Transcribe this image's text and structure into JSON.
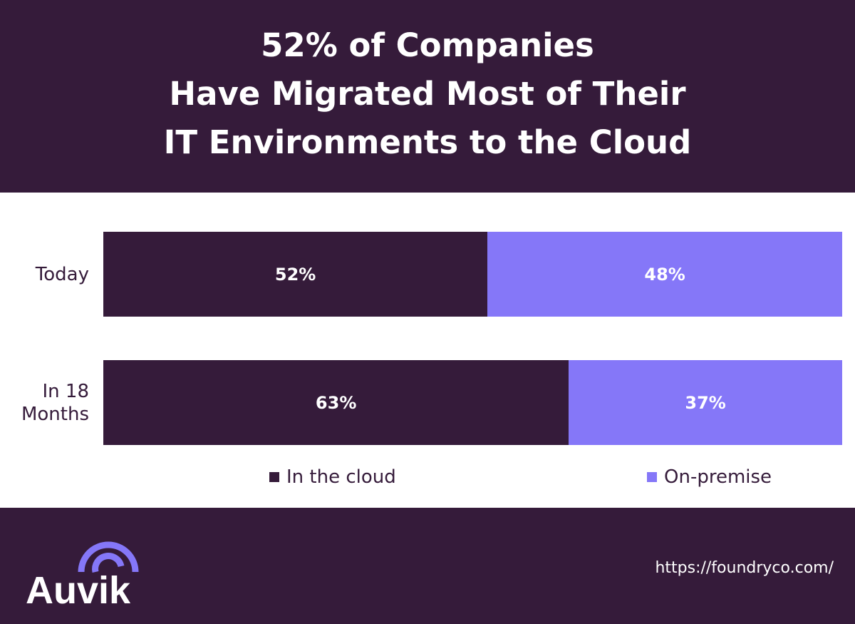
{
  "chart_data": {
    "type": "bar",
    "orientation": "horizontal",
    "stacked": true,
    "normalized_percent": true,
    "title_lines": [
      "52% of Companies",
      "Have Migrated Most of Their",
      "IT Environments to the Cloud"
    ],
    "categories": [
      "Today",
      "In 18 Months"
    ],
    "series": [
      {
        "name": "In the cloud",
        "values": [
          52,
          63
        ],
        "labels": [
          "52%",
          "63%"
        ],
        "color": "#351b3a"
      },
      {
        "name": "On-premise",
        "values": [
          48,
          37
        ],
        "labels": [
          "48%",
          "37%"
        ],
        "color": "#8577f8"
      }
    ],
    "xlim": [
      0,
      100
    ],
    "grid": false,
    "legend_placement": "bottom"
  },
  "branding": {
    "logo_text": "Auvik",
    "url": "https://foundryco.com/"
  },
  "colors": {
    "background_dark": "#351b3a",
    "accent": "#8577f8"
  }
}
